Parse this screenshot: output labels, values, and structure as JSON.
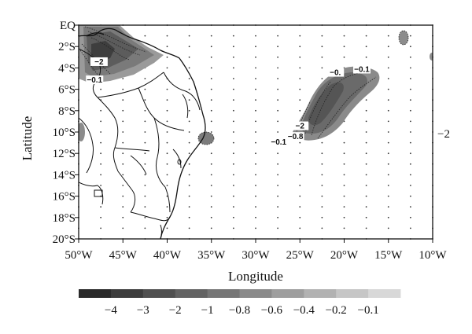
{
  "axes": {
    "xlabel": "Longitude",
    "ylabel": "Latitude",
    "x_tick_labels": [
      "50°W",
      "45°W",
      "40°W",
      "35°W",
      "30°W",
      "25°W",
      "20°W",
      "15°W",
      "10°W"
    ],
    "y_tick_labels": [
      "EQ",
      "2°S",
      "4°S",
      "6°S",
      "8°S",
      "10°S",
      "12°S",
      "14°S",
      "16°S",
      "18°S",
      "20°S"
    ],
    "xlim_deg_w": [
      50,
      10
    ],
    "ylim_deg_s": [
      0,
      20
    ],
    "grid": "dotted"
  },
  "side_label": "−2",
  "contour_labels": [
    {
      "text": "−0.1",
      "lon": -48.2,
      "lat": -5.3
    },
    {
      "text": "−0.",
      "lon": -21.0,
      "lat": -4.6
    },
    {
      "text": "−0.1",
      "lon": -18.0,
      "lat": -4.3
    },
    {
      "text": "−2",
      "lon": -25.0,
      "lat": -9.6
    },
    {
      "text": "−0.8",
      "lon": -25.5,
      "lat": -10.6
    },
    {
      "text": "−0.1",
      "lon": -27.4,
      "lat": -11.1
    },
    {
      "text": "−2",
      "lon": -47.7,
      "lat": -3.6
    }
  ],
  "colorbar": {
    "labels": [
      "−4",
      "−3",
      "−2",
      "−1",
      "−0.8",
      "−0.6",
      "−0.4",
      "−0.2",
      "−0.1"
    ],
    "colors": [
      "#2a2a2a",
      "#3d3d3d",
      "#505050",
      "#636363",
      "#767676",
      "#8a8a8a",
      "#9e9e9e",
      "#b2b2b2",
      "#c6c6c6",
      "#d8d8d8"
    ]
  }
}
